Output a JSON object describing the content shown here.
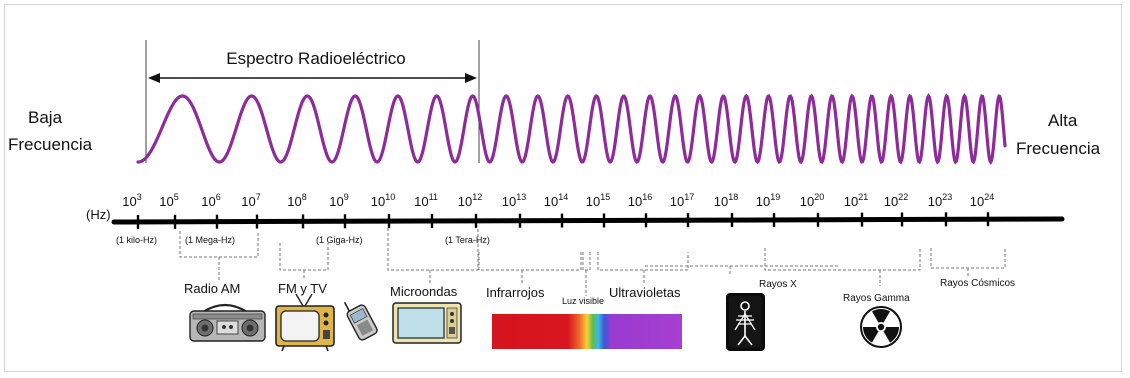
{
  "title": "Espectro Radioeléctrico",
  "low_label": [
    "Baja",
    "Frecuencia"
  ],
  "high_label": [
    "Alta",
    "Frecuencia"
  ],
  "axis_unit": "(Hz)",
  "wave_color": "#8e2a9a",
  "ticks": [
    {
      "base": "10",
      "exp": "3"
    },
    {
      "base": "10",
      "exp": "5"
    },
    {
      "base": "10",
      "exp": "6"
    },
    {
      "base": "10",
      "exp": "7"
    },
    {
      "base": "10",
      "exp": "8"
    },
    {
      "base": "10",
      "exp": "9"
    },
    {
      "base": "10",
      "exp": "10"
    },
    {
      "base": "10",
      "exp": "11"
    },
    {
      "base": "10",
      "exp": "12"
    },
    {
      "base": "10",
      "exp": "13"
    },
    {
      "base": "10",
      "exp": "14"
    },
    {
      "base": "10",
      "exp": "15"
    },
    {
      "base": "10",
      "exp": "16"
    },
    {
      "base": "10",
      "exp": "17"
    },
    {
      "base": "10",
      "exp": "18"
    },
    {
      "base": "10",
      "exp": "19"
    },
    {
      "base": "10",
      "exp": "20"
    },
    {
      "base": "10",
      "exp": "21"
    },
    {
      "base": "10",
      "exp": "22"
    },
    {
      "base": "10",
      "exp": "23"
    },
    {
      "base": "10",
      "exp": "24"
    }
  ],
  "markers": {
    "kilo": "(1 kilo-Hz)",
    "mega": "(1 Mega-Hz)",
    "giga": "(1 Giga-Hz)",
    "tera": "(1 Tera-Hz)"
  },
  "bands": {
    "radio_am": "Radio AM",
    "fm_tv": "FM y TV",
    "microondas": "Microondas",
    "infrarrojos": "Infrarrojos",
    "luz_visible": "Luz visible",
    "ultravioletas": "Ultravioletas",
    "rayos_x": "Rayos X",
    "rayos_gamma": "Rayos Gamma",
    "rayos_cosmicos": "Rayos Cósmicos"
  },
  "icons": [
    "radio-cassette-icon",
    "television-icon",
    "cell-phone-icon",
    "microwave-oven-icon",
    "visible-spectrum-bar",
    "xray-film-icon",
    "radiation-icon"
  ]
}
